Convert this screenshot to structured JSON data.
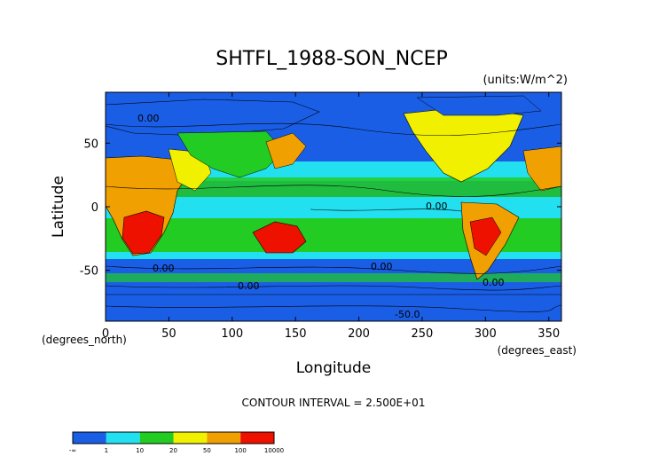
{
  "chart_data": {
    "type": "heatmap",
    "title": "SHTFL_1988-SON_NCEP",
    "units": "(units:W/m^2)",
    "xlabel": "Longitude",
    "ylabel": "Latitude",
    "x_unit_label": "(degrees_east)",
    "y_unit_label": "(degrees_north)",
    "xlim": [
      0,
      360
    ],
    "ylim": [
      -90,
      90
    ],
    "x_ticks": [
      0,
      50,
      100,
      150,
      200,
      250,
      300,
      350
    ],
    "y_ticks": [
      -50,
      0,
      50
    ],
    "contour_interval_label": "CONTOUR INTERVAL = 2.500E+01",
    "contour_labels": [
      "0.00",
      "0.00",
      "0.00",
      "0.00",
      "0.00",
      "0.00",
      "-50.0"
    ],
    "colorbar": {
      "levels": [
        "-∞",
        "1",
        "10",
        "20",
        "50",
        "100",
        "10000"
      ],
      "colors": [
        "#1a5ee6",
        "#22e0f0",
        "#22cc22",
        "#f0f000",
        "#f0a000",
        "#ee1100"
      ]
    }
  }
}
